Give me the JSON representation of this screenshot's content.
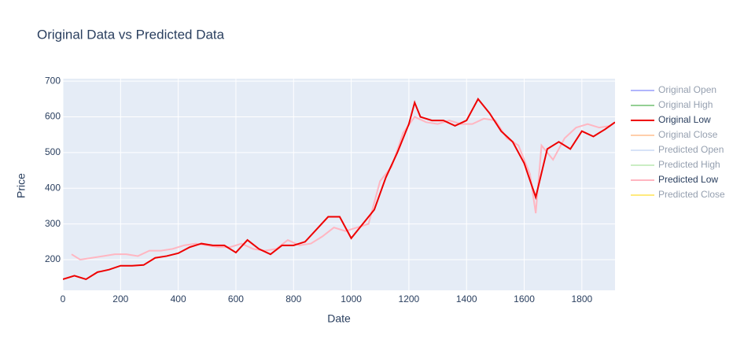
{
  "chart_data": {
    "type": "line",
    "title": "Original Data vs Predicted Data",
    "x_label": "Date",
    "y_label": "Price",
    "xlim": [
      0,
      1915
    ],
    "ylim": [
      114,
      707
    ],
    "xticks": [
      0,
      200,
      400,
      600,
      800,
      1000,
      1200,
      1400,
      1600,
      1800
    ],
    "yticks": [
      200,
      300,
      400,
      500,
      600,
      700
    ],
    "grid": true,
    "legend": "right",
    "series": [
      {
        "name": "Original Open",
        "color": "#636efa",
        "visible": "legendonly"
      },
      {
        "name": "Original High",
        "color": "#2ca02c",
        "visible": "legendonly"
      },
      {
        "name": "Original Low",
        "color": "#ee0000",
        "visible": true,
        "x": [
          0,
          40,
          80,
          120,
          160,
          200,
          240,
          280,
          320,
          360,
          400,
          440,
          480,
          520,
          560,
          600,
          640,
          680,
          720,
          760,
          800,
          840,
          880,
          920,
          960,
          1000,
          1040,
          1080,
          1120,
          1160,
          1200,
          1220,
          1240,
          1280,
          1320,
          1360,
          1400,
          1440,
          1480,
          1520,
          1560,
          1600,
          1640,
          1680,
          1720,
          1760,
          1800,
          1840,
          1880,
          1915
        ],
        "values": [
          145,
          155,
          145,
          165,
          172,
          183,
          183,
          185,
          205,
          210,
          218,
          235,
          245,
          240,
          240,
          220,
          255,
          230,
          215,
          240,
          240,
          250,
          285,
          320,
          320,
          260,
          300,
          340,
          430,
          500,
          580,
          640,
          600,
          590,
          590,
          575,
          590,
          650,
          610,
          560,
          530,
          470,
          375,
          510,
          530,
          510,
          560,
          545,
          565,
          585
        ]
      },
      {
        "name": "Original Close",
        "color": "#ffa15a",
        "visible": "legendonly"
      },
      {
        "name": "Predicted Open",
        "color": "#b0c8f0",
        "visible": "legendonly"
      },
      {
        "name": "Predicted High",
        "color": "#98df8a",
        "visible": "legendonly"
      },
      {
        "name": "Predicted Low",
        "color": "#ffb6c1",
        "visible": true,
        "x": [
          30,
          60,
          100,
          140,
          180,
          220,
          260,
          300,
          340,
          380,
          420,
          460,
          500,
          540,
          580,
          620,
          660,
          700,
          740,
          780,
          820,
          860,
          900,
          940,
          980,
          1020,
          1060,
          1100,
          1140,
          1180,
          1220,
          1260,
          1300,
          1340,
          1380,
          1420,
          1460,
          1500,
          1540,
          1580,
          1620,
          1640,
          1660,
          1700,
          1740,
          1780,
          1820,
          1860,
          1900
        ],
        "values": [
          215,
          200,
          205,
          210,
          215,
          215,
          210,
          225,
          225,
          230,
          240,
          245,
          240,
          235,
          235,
          245,
          230,
          225,
          230,
          255,
          240,
          245,
          265,
          290,
          280,
          290,
          300,
          420,
          460,
          555,
          600,
          585,
          580,
          590,
          580,
          580,
          595,
          590,
          540,
          520,
          440,
          330,
          520,
          480,
          540,
          570,
          580,
          570,
          575
        ]
      },
      {
        "name": "Predicted Close",
        "color": "#ffd700",
        "visible": "legendonly"
      }
    ]
  }
}
